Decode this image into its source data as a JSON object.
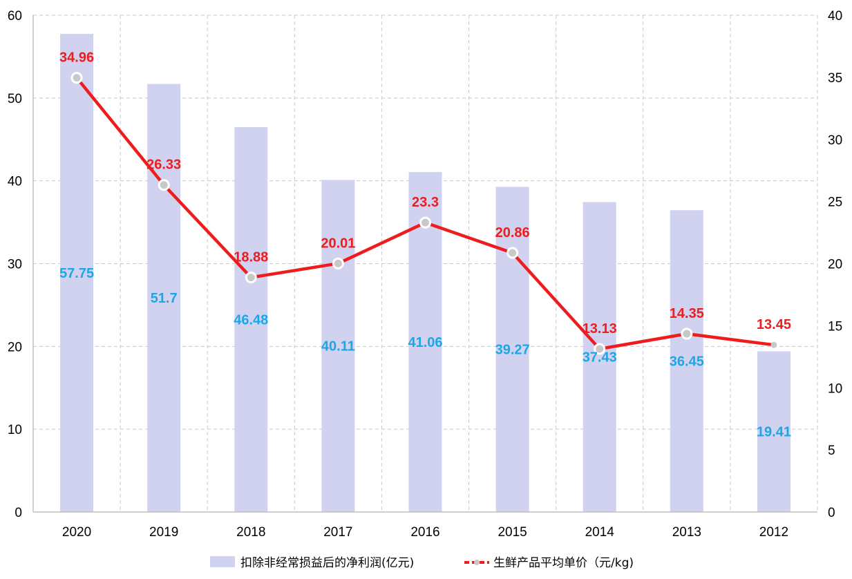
{
  "chart_data": {
    "type": "bar",
    "categories": [
      "2020",
      "2019",
      "2018",
      "2017",
      "2016",
      "2015",
      "2014",
      "2013",
      "2012"
    ],
    "series": [
      {
        "name": "扣除非经常损益后的净利润(亿元)",
        "type": "bar",
        "axis": "left",
        "color": "#d1d2f0",
        "label_color": "#1aa7e8",
        "values": [
          57.75,
          51.7,
          46.48,
          40.11,
          41.06,
          39.27,
          37.43,
          36.45,
          19.41
        ],
        "labels": [
          "57.75",
          "51.7",
          "46.48",
          "40.11",
          "41.06",
          "39.27",
          "37.43",
          "36.45",
          "19.41"
        ]
      },
      {
        "name": "生鲜产品平均单价（元/kg)",
        "type": "line",
        "axis": "right",
        "color": "#ee1c1c",
        "marker_color": "#c8c8c8",
        "values": [
          34.96,
          26.33,
          18.88,
          20.01,
          23.3,
          20.86,
          13.13,
          14.35,
          13.45
        ],
        "labels": [
          "34.96",
          "26.33",
          "18.88",
          "20.01",
          "23.3",
          "20.86",
          "13.13",
          "14.35",
          "13.45"
        ]
      }
    ],
    "y_left": {
      "range": [
        0,
        60
      ],
      "ticks": [
        "0",
        "10",
        "20",
        "30",
        "40",
        "50",
        "60"
      ]
    },
    "y_right": {
      "range": [
        0,
        40
      ],
      "ticks": [
        "0",
        "5",
        "10",
        "15",
        "20",
        "25",
        "30",
        "35",
        "40"
      ]
    },
    "grid": true,
    "legend_position": "bottom",
    "title": "",
    "xlabel": "",
    "ylabel": ""
  }
}
